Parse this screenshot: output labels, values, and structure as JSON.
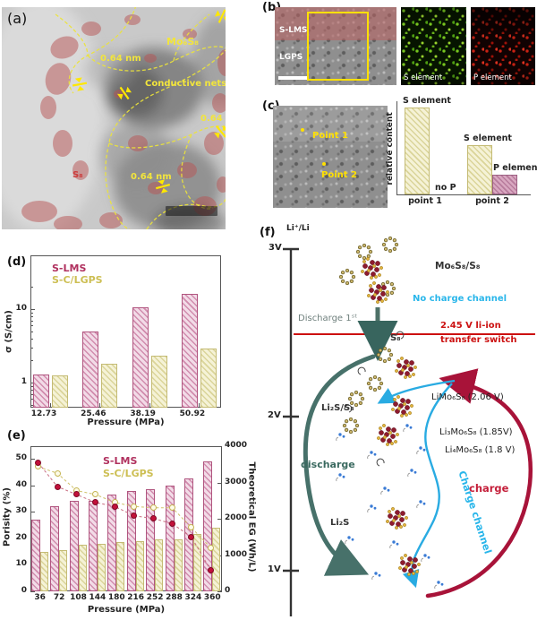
{
  "panel_labels": {
    "a": "(a)",
    "b": "(b)",
    "c": "(c)",
    "d": "(d)",
    "e": "(e)",
    "f": "(f)"
  },
  "panel_a": {
    "mo6s8": "Mo₆S₈",
    "conductive_nets": "Conductive nets",
    "d1": "0.64 nm",
    "d2": "0.64 nm",
    "d3": "0.64 nm",
    "s8": "S₈"
  },
  "panel_b": {
    "layer_top": "S-LMS",
    "layer_bottom": "LGPS",
    "map_s_label": "S element",
    "map_p_label": "P element"
  },
  "panel_c": {
    "point1": "Point 1",
    "point2": "Point 2"
  },
  "panel_f": {
    "axis_ref": "Li⁺/Li",
    "v3": "3V",
    "v2": "2V",
    "v1": "1V",
    "mo6s8_s8": "Mo₆S₈/S₈",
    "no_charge": "No charge channel",
    "discharge_1st": "Discharge 1ˢᵗ",
    "switch_line1": "2.45 V li-ion",
    "switch_line2": "transfer switch",
    "s8": "S₈",
    "li2s_s8": "Li₂S/S₈",
    "limo": "LiMo₆S₈ (2.06 V)",
    "li3mo": "Li₃Mo₆S₈ (1.85V)",
    "li4mo": "Li₄Mo₆S₈ (1.8 V)",
    "discharge": "discharge",
    "charge": "charge",
    "li2s": "Li₂S",
    "charge_channel": "Charge channel"
  },
  "colors": {
    "slms": "#b0315f",
    "sclgps": "#cdbf54",
    "teal": "#38655e",
    "crimson": "#a81339",
    "cyan": "#29abe2",
    "red_line": "#cc1111"
  },
  "chart_data": [
    {
      "id": "panel-c",
      "type": "bar",
      "categories": [
        "point 1",
        "point 2"
      ],
      "series": [
        {
          "name": "S element",
          "values": [
            1.0,
            0.57
          ]
        },
        {
          "name": "P element",
          "values": [
            null,
            0.23
          ]
        }
      ],
      "ylabel": "relative content",
      "ylim": [
        0,
        1.1
      ],
      "grid": false,
      "annotations": {
        "bar1": "S element",
        "no_p": "no P",
        "bar2": "S element",
        "bar3": "P element"
      }
    },
    {
      "id": "panel-d",
      "type": "bar",
      "categories": [
        "12.73",
        "25.46",
        "38.19",
        "50.92"
      ],
      "series": [
        {
          "name": "S-LMS",
          "values": [
            1.3,
            5.0,
            10.5,
            16.0
          ]
        },
        {
          "name": "S-C/LGPS",
          "values": [
            1.25,
            1.8,
            2.35,
            2.9
          ]
        }
      ],
      "xlabel": "Pressure (MPa)",
      "ylabel": "σ (S/cm)",
      "yscale": "log",
      "yticks": [
        1,
        10
      ],
      "ylim": [
        0.45,
        30
      ],
      "legend_position": "top-left",
      "grid": false
    },
    {
      "id": "panel-e",
      "type": "bar+scatter",
      "categories": [
        36,
        72,
        108,
        144,
        180,
        216,
        252,
        288,
        324,
        360
      ],
      "bar_series": [
        {
          "name": "S-LMS",
          "values": [
            27,
            32,
            34,
            34,
            36.5,
            38,
            38.5,
            40,
            42.5,
            49
          ]
        },
        {
          "name": "S-C/LGPS",
          "values": [
            15,
            15.5,
            17.5,
            18,
            18.5,
            19,
            19.5,
            19.5,
            21.5,
            24
          ]
        }
      ],
      "scatter_series": [
        {
          "name": "S-LMS",
          "values": [
            48.5,
            39.5,
            36.5,
            33.5,
            32,
            28.5,
            27.5,
            25.5,
            20.5,
            8
          ]
        },
        {
          "name": "S-C/LGPS",
          "values": [
            47,
            44.5,
            38,
            36.5,
            33.5,
            32,
            31.5,
            31.5,
            24,
            16.5
          ]
        }
      ],
      "xlabel": "Pressure (MPa)",
      "ylabel_left": "Porisity (%)",
      "ylabel_right": "Theoretical EG (Wh/L)",
      "yticks_left": [
        0,
        10,
        20,
        30,
        40,
        50
      ],
      "yticks_right": [
        0,
        1000,
        2000,
        3000,
        4000
      ],
      "ylim_left": [
        0,
        54.7
      ],
      "ylim_right": [
        0,
        4000
      ],
      "legend_position": "top-center",
      "grid": false
    }
  ]
}
